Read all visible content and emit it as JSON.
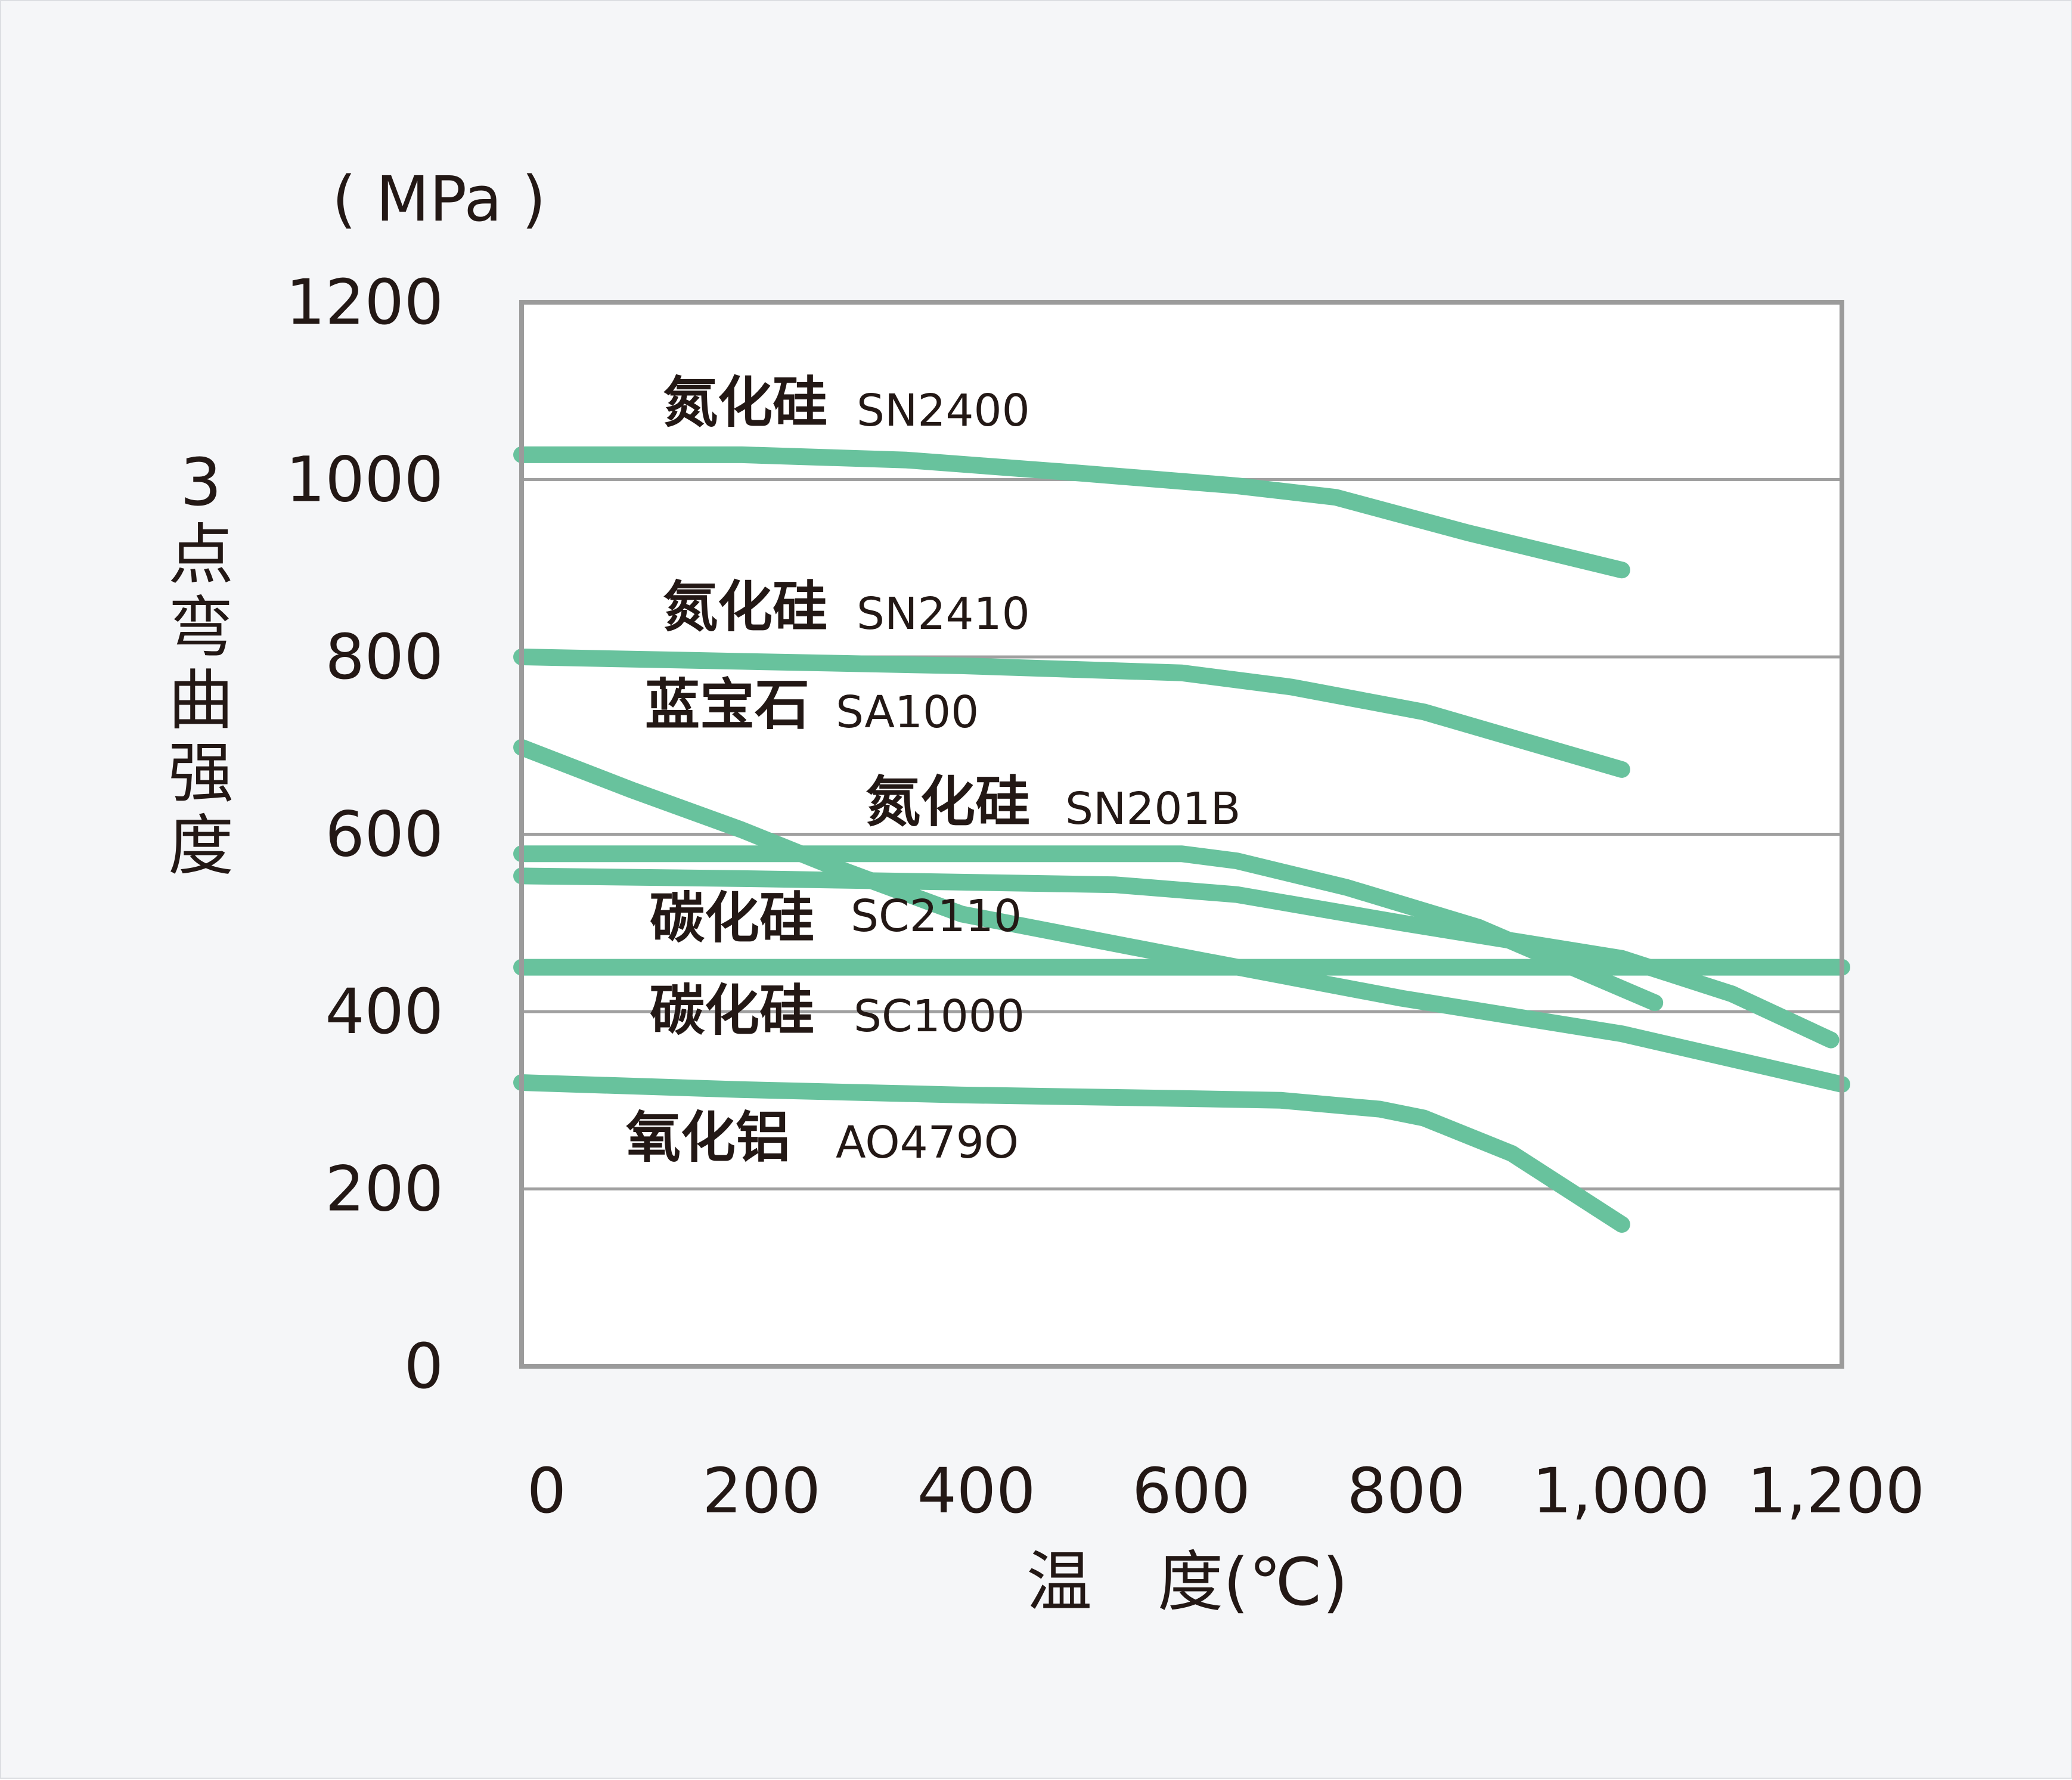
{
  "chart_data": {
    "type": "line",
    "unit_label": "( MPa )",
    "ylabel": "3点弯曲强度",
    "xlabel": "温　度(℃)",
    "ylim": [
      0,
      1200
    ],
    "xlim": [
      0,
      1200
    ],
    "yticks": [
      0,
      200,
      400,
      600,
      800,
      1000,
      1200
    ],
    "ytick_labels": [
      "0",
      "200",
      "400",
      "600",
      "800",
      "1000",
      "1200"
    ],
    "xticks": [
      0,
      200,
      400,
      600,
      800,
      1000,
      1200
    ],
    "xtick_labels": [
      "0",
      "200",
      "400",
      "600",
      "800",
      "1,000",
      "1,200"
    ],
    "grid": true,
    "line_color": "#68c29d",
    "series": [
      {
        "name": "氮化硅",
        "code": "SN2400",
        "x": [
          0,
          200,
          350,
          500,
          650,
          740,
          860,
          1000
        ],
        "y": [
          1028,
          1028,
          1022,
          1008,
          993,
          980,
          940,
          898
        ]
      },
      {
        "name": "氮化硅",
        "code": "SN2410",
        "x": [
          0,
          200,
          400,
          600,
          700,
          820,
          1000
        ],
        "y": [
          800,
          795,
          790,
          782,
          766,
          738,
          673
        ]
      },
      {
        "name": "蓝宝石",
        "code": "SA100",
        "x": [
          0,
          100,
          200,
          280,
          400,
          600,
          800,
          1000,
          1200
        ],
        "y": [
          698,
          650,
          605,
          565,
          510,
          462,
          415,
          375,
          318
        ]
      },
      {
        "name": "氮化硅",
        "code": "SN201B",
        "x": [
          0,
          200,
          400,
          600,
          650,
          750,
          870,
          1030
        ],
        "y": [
          578,
          578,
          578,
          578,
          570,
          540,
          495,
          410
        ]
      },
      {
        "name": "碳化硅",
        "code": "SC2110",
        "x": [
          0,
          200,
          400,
          540,
          650,
          800,
          1000,
          1100,
          1190
        ],
        "y": [
          553,
          550,
          546,
          543,
          532,
          500,
          460,
          420,
          368
        ]
      },
      {
        "name": "碳化硅",
        "code": "SC1000",
        "x": [
          0,
          300,
          600,
          900,
          1200
        ],
        "y": [
          450,
          450,
          450,
          450,
          450
        ]
      },
      {
        "name": "氧化铝",
        "code": "AO479O",
        "x": [
          0,
          200,
          400,
          600,
          690,
          780,
          820,
          900,
          1000
        ],
        "y": [
          320,
          312,
          306,
          302,
          300,
          290,
          280,
          240,
          160
        ]
      }
    ]
  }
}
